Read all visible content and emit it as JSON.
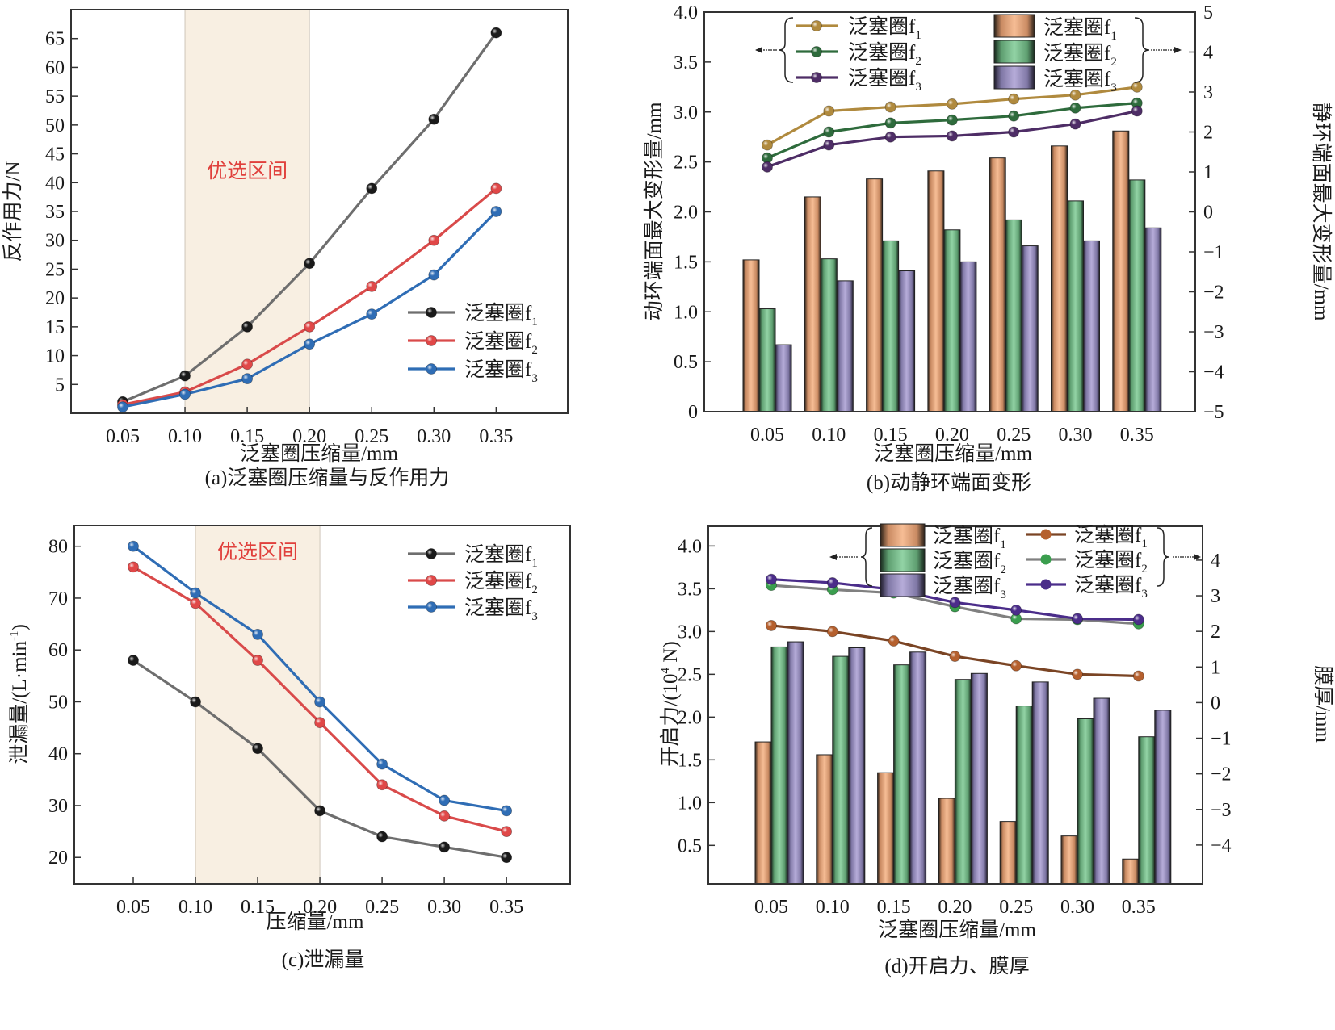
{
  "figure": {
    "panels": [
      "a",
      "b",
      "c",
      "d"
    ]
  },
  "chart_data": [
    {
      "id": "a",
      "type": "line",
      "caption": "(a)泛塞圈压缩量与反作用力",
      "xlabel": "泛塞圈压缩量/mm",
      "ylabel": "反作用力/N",
      "x": [
        0.05,
        0.1,
        0.15,
        0.2,
        0.25,
        0.3,
        0.35
      ],
      "x_tick_labels": [
        "0.05",
        "0.10",
        "0.15",
        "0.20",
        "0.25",
        "0.30",
        "0.35"
      ],
      "xlim": [
        0.0085,
        0.4075
      ],
      "ylim": [
        0,
        70
      ],
      "y_ticks": [
        5,
        10,
        15,
        20,
        25,
        30,
        35,
        40,
        45,
        50,
        55,
        60,
        65
      ],
      "highlight_region": {
        "x": [
          0.1,
          0.2
        ],
        "label": "优选区间",
        "color": "#f8efe2"
      },
      "legend_position": "lower-right",
      "series": [
        {
          "name": "泛塞圈f",
          "sub": "1",
          "color": "#6e6e6e",
          "marker": "#1a1a1a",
          "values": [
            2.0,
            6.5,
            15,
            26,
            39,
            51,
            66
          ]
        },
        {
          "name": "泛塞圈f",
          "sub": "2",
          "color": "#d94a4a",
          "marker": "#e04848",
          "values": [
            1.5,
            3.7,
            8.5,
            15,
            22,
            30,
            39
          ]
        },
        {
          "name": "泛塞圈f",
          "sub": "3",
          "color": "#2f6db5",
          "marker": "#2f6db5",
          "values": [
            1.1,
            3.3,
            6.0,
            12,
            17.2,
            24,
            35
          ]
        }
      ]
    },
    {
      "id": "b",
      "type": "bar+line",
      "caption": "(b)动静环端面变形",
      "xlabel": "泛塞圈压缩量/mm",
      "ylabel_left": "动环端面最大变形量/mm",
      "ylabel_right": "静环端面最大变形量/mm",
      "x_tick_labels": [
        "0.05",
        "0.10",
        "0.15",
        "0.20",
        "0.25",
        "0.30",
        "0.35"
      ],
      "ylim_left": [
        0,
        4.0
      ],
      "y_ticks_left": [
        "0",
        "0.5",
        "1.0",
        "1.5",
        "2.0",
        "2.5",
        "3.0",
        "3.5",
        "4.0"
      ],
      "ylim_right": [
        -5,
        5
      ],
      "y_ticks_right": [
        "−5",
        "−4",
        "−3",
        "−2",
        "−1",
        "0",
        "1",
        "2",
        "3",
        "4",
        "5"
      ],
      "legend_position": "top-left",
      "line_axis": "left",
      "bar_axis": "left",
      "lines": [
        {
          "name": "泛塞圈f",
          "sub": "1",
          "color": "#b08a3e",
          "values": [
            2.67,
            3.01,
            3.05,
            3.08,
            3.13,
            3.17,
            3.25
          ]
        },
        {
          "name": "泛塞圈f",
          "sub": "2",
          "color": "#2e6b3c",
          "values": [
            2.54,
            2.8,
            2.89,
            2.92,
            2.96,
            3.04,
            3.09
          ]
        },
        {
          "name": "泛塞圈f",
          "sub": "3",
          "color": "#4e2d66",
          "values": [
            2.45,
            2.67,
            2.75,
            2.76,
            2.8,
            2.88,
            3.01
          ]
        }
      ],
      "bars": [
        {
          "name": "泛塞圈f",
          "sub": "1",
          "color": "#f4b48a",
          "values": [
            1.52,
            2.15,
            2.33,
            2.41,
            2.54,
            2.66,
            2.81
          ]
        },
        {
          "name": "泛塞圈f",
          "sub": "2",
          "color": "#8acc9c",
          "values": [
            1.03,
            1.53,
            1.71,
            1.82,
            1.92,
            2.11,
            2.32
          ]
        },
        {
          "name": "泛塞圈f",
          "sub": "3",
          "color": "#aea4d2",
          "values": [
            0.67,
            1.31,
            1.41,
            1.5,
            1.66,
            1.71,
            1.84
          ]
        }
      ]
    },
    {
      "id": "c",
      "type": "line",
      "caption": "(c)泄漏量",
      "xlabel": "压缩量/mm",
      "ylabel": "泄漏量/(L·min",
      "ylabel_sup": "-1",
      "ylabel_tail": ")",
      "x": [
        0.05,
        0.1,
        0.15,
        0.2,
        0.25,
        0.3,
        0.35
      ],
      "x_tick_labels": [
        "0.05",
        "0.10",
        "0.15",
        "0.20",
        "0.25",
        "0.30",
        "0.35"
      ],
      "xlim": [
        0.0026,
        0.4012
      ],
      "ylim": [
        14.9,
        84.0
      ],
      "y_ticks": [
        20,
        30,
        40,
        50,
        60,
        70,
        80
      ],
      "highlight_region": {
        "x": [
          0.1,
          0.2
        ],
        "label": "优选区间",
        "color": "#f8efe2"
      },
      "legend_position": "top-right",
      "series": [
        {
          "name": "泛塞圈f",
          "sub": "1",
          "color": "#6e6e6e",
          "marker": "#1a1a1a",
          "values": [
            58,
            50,
            41,
            29,
            24,
            22,
            20
          ]
        },
        {
          "name": "泛塞圈f",
          "sub": "2",
          "color": "#d94a4a",
          "marker": "#e04848",
          "values": [
            76,
            69,
            58,
            46,
            34,
            28,
            25
          ]
        },
        {
          "name": "泛塞圈f",
          "sub": "3",
          "color": "#2f6db5",
          "marker": "#2f6db5",
          "values": [
            80,
            71,
            63,
            50,
            38,
            31,
            29
          ]
        }
      ]
    },
    {
      "id": "d",
      "type": "bar+line",
      "caption": "(d)开启力、膜厚",
      "xlabel": "泛塞圈压缩量/mm",
      "ylabel_left": "开启力/(10",
      "ylabel_left_sup": "4",
      "ylabel_left_tail": " N)",
      "ylabel_right": "膜厚/mm",
      "x_tick_labels": [
        "0.05",
        "0.10",
        "0.15",
        "0.20",
        "0.25",
        "0.30",
        "0.35"
      ],
      "ylim_left": [
        0.05,
        4.23
      ],
      "y_ticks_left": [
        "0.5",
        "1.0",
        "1.5",
        "2.0",
        "2.5",
        "3.0",
        "3.5",
        "4.0"
      ],
      "ylim_right": [
        -5.09,
        4.95
      ],
      "y_ticks_right": [
        "−4",
        "−3",
        "−2",
        "−1",
        "0",
        "1",
        "2",
        "3",
        "4"
      ],
      "legend_position": "top-right",
      "bars": [
        {
          "name": "泛塞圈f",
          "sub": "1",
          "color": "#f4b48a",
          "values": [
            1.71,
            1.56,
            1.35,
            1.05,
            0.78,
            0.61,
            0.34
          ]
        },
        {
          "name": "泛塞圈f",
          "sub": "2",
          "color": "#8acc9c",
          "values": [
            2.82,
            2.71,
            2.61,
            2.44,
            2.13,
            1.98,
            1.77
          ]
        },
        {
          "name": "泛塞圈f",
          "sub": "3",
          "color": "#aea4d2",
          "values": [
            2.88,
            2.81,
            2.76,
            2.51,
            2.41,
            2.22,
            2.08
          ]
        }
      ],
      "lines": [
        {
          "name": "泛塞圈f",
          "sub": "1",
          "color": "#7a4424",
          "marker": "#b5602e",
          "values": [
            3.07,
            3.0,
            2.89,
            2.71,
            2.6,
            2.5,
            2.48
          ]
        },
        {
          "name": "泛塞圈f",
          "sub": "2",
          "color": "#808080",
          "marker": "#3a9e4e",
          "values": [
            3.54,
            3.49,
            3.45,
            3.29,
            3.15,
            3.14,
            3.09
          ]
        },
        {
          "name": "泛塞圈f",
          "sub": "3",
          "color": "#4b2d8a",
          "marker": "#4b2d8a",
          "values": [
            3.61,
            3.57,
            3.49,
            3.34,
            3.25,
            3.15,
            3.14
          ]
        }
      ],
      "line_axis": "left",
      "bar_axis": "left"
    }
  ]
}
